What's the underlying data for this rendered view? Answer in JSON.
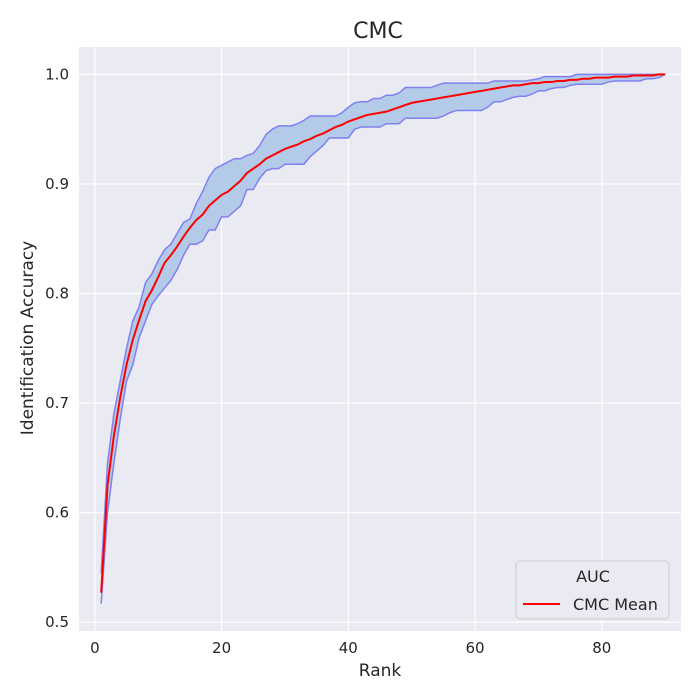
{
  "chart_data": {
    "type": "line",
    "title": "CMC",
    "xlabel": "Rank",
    "ylabel": "Identification Accuracy",
    "xlim": [
      -2.5,
      92.5
    ],
    "ylim": [
      0.492,
      1.025
    ],
    "xticks": [
      0,
      20,
      40,
      60,
      80
    ],
    "yticks": [
      0.5,
      0.6,
      0.7,
      0.8,
      0.9,
      1.0
    ],
    "xtick_labels": [
      "0",
      "20",
      "40",
      "60",
      "80"
    ],
    "ytick_labels": [
      "0.5",
      "0.6",
      "0.7",
      "0.8",
      "0.9",
      "1.0"
    ],
    "grid": true,
    "background": "#eaeaf2",
    "legend": {
      "title": "AUC",
      "location": "lower-right"
    },
    "series": [
      {
        "name": "CMC Mean",
        "kind": "line",
        "color": "#ff0000",
        "x": [
          1,
          2,
          3,
          4,
          5,
          6,
          7,
          8,
          9,
          10,
          11,
          12,
          13,
          14,
          15,
          16,
          17,
          18,
          19,
          20,
          21,
          22,
          23,
          24,
          25,
          26,
          27,
          28,
          29,
          30,
          31,
          32,
          33,
          34,
          35,
          36,
          37,
          38,
          39,
          40,
          41,
          42,
          43,
          44,
          45,
          46,
          47,
          48,
          49,
          50,
          51,
          52,
          53,
          54,
          55,
          56,
          57,
          58,
          59,
          60,
          61,
          62,
          63,
          64,
          65,
          66,
          67,
          68,
          69,
          70,
          71,
          72,
          73,
          74,
          75,
          76,
          77,
          78,
          79,
          80,
          81,
          82,
          83,
          84,
          85,
          86,
          87,
          88,
          89,
          90
        ],
        "y": [
          0.527,
          0.625,
          0.67,
          0.705,
          0.735,
          0.758,
          0.776,
          0.793,
          0.803,
          0.815,
          0.828,
          0.835,
          0.843,
          0.852,
          0.86,
          0.867,
          0.872,
          0.88,
          0.885,
          0.89,
          0.893,
          0.898,
          0.903,
          0.91,
          0.914,
          0.918,
          0.923,
          0.926,
          0.929,
          0.932,
          0.934,
          0.936,
          0.939,
          0.941,
          0.944,
          0.946,
          0.949,
          0.952,
          0.954,
          0.957,
          0.959,
          0.961,
          0.963,
          0.964,
          0.965,
          0.966,
          0.968,
          0.97,
          0.972,
          0.974,
          0.975,
          0.976,
          0.977,
          0.978,
          0.979,
          0.98,
          0.981,
          0.982,
          0.983,
          0.984,
          0.985,
          0.986,
          0.987,
          0.988,
          0.989,
          0.99,
          0.99,
          0.991,
          0.992,
          0.992,
          0.993,
          0.993,
          0.994,
          0.994,
          0.995,
          0.995,
          0.996,
          0.996,
          0.997,
          0.997,
          0.997,
          0.998,
          0.998,
          0.998,
          0.999,
          0.999,
          0.999,
          0.999,
          1.0,
          1.0
        ]
      },
      {
        "kind": "band",
        "color": "#aec7e8",
        "edge_color": "#8080f0",
        "x": [
          1,
          2,
          3,
          4,
          5,
          6,
          7,
          8,
          9,
          10,
          11,
          12,
          13,
          14,
          15,
          16,
          17,
          18,
          19,
          20,
          21,
          22,
          23,
          24,
          25,
          26,
          27,
          28,
          29,
          30,
          31,
          32,
          33,
          34,
          35,
          36,
          37,
          38,
          39,
          40,
          41,
          42,
          43,
          44,
          45,
          46,
          47,
          48,
          49,
          50,
          51,
          52,
          53,
          54,
          55,
          56,
          57,
          58,
          59,
          60,
          61,
          62,
          63,
          64,
          65,
          66,
          67,
          68,
          69,
          70,
          71,
          72,
          73,
          74,
          75,
          76,
          77,
          78,
          79,
          80,
          81,
          82,
          83,
          84,
          85,
          86,
          87,
          88,
          89,
          90
        ],
        "lower": [
          0.517,
          0.6,
          0.645,
          0.685,
          0.72,
          0.735,
          0.76,
          0.775,
          0.79,
          0.798,
          0.805,
          0.812,
          0.822,
          0.835,
          0.845,
          0.845,
          0.848,
          0.858,
          0.858,
          0.87,
          0.87,
          0.875,
          0.88,
          0.895,
          0.895,
          0.905,
          0.912,
          0.914,
          0.914,
          0.918,
          0.918,
          0.918,
          0.918,
          0.925,
          0.93,
          0.935,
          0.942,
          0.942,
          0.942,
          0.942,
          0.95,
          0.952,
          0.952,
          0.952,
          0.952,
          0.955,
          0.955,
          0.955,
          0.96,
          0.96,
          0.96,
          0.96,
          0.96,
          0.96,
          0.962,
          0.965,
          0.967,
          0.967,
          0.967,
          0.967,
          0.967,
          0.97,
          0.975,
          0.975,
          0.977,
          0.979,
          0.98,
          0.98,
          0.982,
          0.985,
          0.985,
          0.987,
          0.988,
          0.988,
          0.99,
          0.991,
          0.991,
          0.991,
          0.991,
          0.991,
          0.993,
          0.994,
          0.994,
          0.994,
          0.994,
          0.994,
          0.996,
          0.996,
          0.997,
          1.0
        ],
        "upper": [
          0.545,
          0.645,
          0.69,
          0.72,
          0.75,
          0.775,
          0.788,
          0.81,
          0.818,
          0.83,
          0.84,
          0.845,
          0.855,
          0.865,
          0.868,
          0.882,
          0.893,
          0.906,
          0.914,
          0.917,
          0.92,
          0.923,
          0.923,
          0.926,
          0.928,
          0.935,
          0.945,
          0.95,
          0.953,
          0.953,
          0.953,
          0.955,
          0.958,
          0.962,
          0.962,
          0.962,
          0.962,
          0.962,
          0.965,
          0.97,
          0.974,
          0.975,
          0.975,
          0.978,
          0.978,
          0.981,
          0.981,
          0.983,
          0.988,
          0.988,
          0.988,
          0.988,
          0.988,
          0.99,
          0.992,
          0.992,
          0.992,
          0.992,
          0.992,
          0.992,
          0.992,
          0.992,
          0.994,
          0.994,
          0.994,
          0.994,
          0.994,
          0.994,
          0.995,
          0.996,
          0.998,
          0.998,
          0.998,
          0.998,
          0.998,
          1.0,
          1.0,
          1.0,
          1.0,
          1.0,
          1.0,
          1.0,
          1.0,
          1.0,
          1.0,
          1.0,
          1.0,
          1.0,
          1.0,
          1.0
        ]
      }
    ]
  }
}
